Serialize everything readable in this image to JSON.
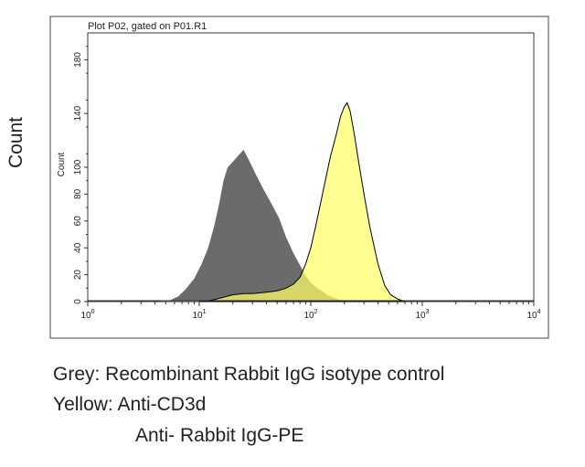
{
  "outer_ylabel": "Count",
  "legend": {
    "line1": "Grey: Recombinant Rabbit IgG isotype control",
    "line2": "Yellow: Anti-CD3d",
    "line3": "Anti- Rabbit IgG-PE"
  },
  "chart_data": {
    "type": "area",
    "title": "Plot P02, gated on P01.R1",
    "xlabel": "",
    "ylabel": "Count",
    "xscale": "log",
    "xlim": [
      1,
      10000
    ],
    "ylim": [
      0,
      200
    ],
    "grid": false,
    "x_ticks": [
      {
        "value": 1,
        "base": "10",
        "exp": "0"
      },
      {
        "value": 10,
        "base": "10",
        "exp": "1"
      },
      {
        "value": 100,
        "base": "10",
        "exp": "2"
      },
      {
        "value": 1000,
        "base": "10",
        "exp": "3"
      },
      {
        "value": 10000,
        "base": "10",
        "exp": "4"
      }
    ],
    "y_ticks": [
      0,
      20,
      40,
      60,
      80,
      100,
      140,
      180
    ],
    "colors": {
      "grey": "#6b6b6b",
      "yellow": "#ffff66"
    },
    "series": [
      {
        "color": "grey",
        "points": [
          [
            4.5,
            0
          ],
          [
            5.5,
            1
          ],
          [
            6.5,
            4
          ],
          [
            7.5,
            9
          ],
          [
            9,
            17
          ],
          [
            10.5,
            28
          ],
          [
            12,
            40
          ],
          [
            13.5,
            55
          ],
          [
            15,
            72
          ],
          [
            16.5,
            90
          ],
          [
            18,
            100
          ],
          [
            20,
            104
          ],
          [
            22,
            108
          ],
          [
            25,
            113
          ],
          [
            28,
            105
          ],
          [
            32,
            95
          ],
          [
            38,
            83
          ],
          [
            45,
            72
          ],
          [
            52,
            62
          ],
          [
            60,
            48
          ],
          [
            70,
            36
          ],
          [
            80,
            27
          ],
          [
            90,
            19
          ],
          [
            100,
            14
          ],
          [
            110,
            11
          ],
          [
            125,
            8
          ],
          [
            140,
            5
          ],
          [
            160,
            3
          ],
          [
            200,
            0
          ]
        ]
      },
      {
        "color": "yellow",
        "points": [
          [
            10,
            0
          ],
          [
            13,
            1
          ],
          [
            16,
            3
          ],
          [
            20,
            5
          ],
          [
            25,
            6
          ],
          [
            30,
            6
          ],
          [
            40,
            7
          ],
          [
            50,
            8
          ],
          [
            60,
            10
          ],
          [
            70,
            13
          ],
          [
            80,
            18
          ],
          [
            90,
            28
          ],
          [
            100,
            40
          ],
          [
            110,
            55
          ],
          [
            120,
            70
          ],
          [
            135,
            90
          ],
          [
            150,
            108
          ],
          [
            170,
            125
          ],
          [
            185,
            138
          ],
          [
            200,
            145
          ],
          [
            212,
            148
          ],
          [
            225,
            142
          ],
          [
            245,
            125
          ],
          [
            270,
            103
          ],
          [
            300,
            80
          ],
          [
            340,
            55
          ],
          [
            400,
            28
          ],
          [
            460,
            12
          ],
          [
            520,
            5
          ],
          [
            600,
            2
          ],
          [
            700,
            0
          ]
        ]
      }
    ]
  }
}
